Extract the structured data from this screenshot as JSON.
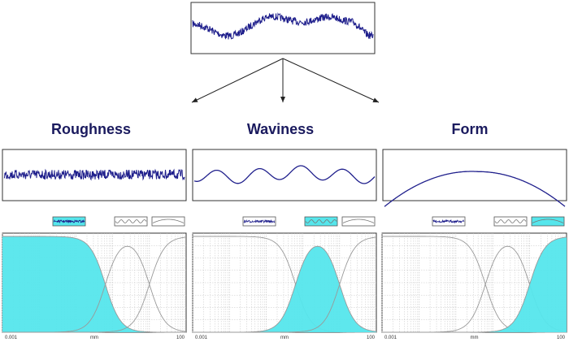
{
  "colors": {
    "signal": "#1f1f8c",
    "highlight": "#55e6ec",
    "curve": "#999999",
    "grid": "#c4c4c4",
    "frame": "#333333",
    "title": "#1a1a5e"
  },
  "columns": [
    {
      "title": "Roughness",
      "sample": "roughness",
      "highlighted_band": 0,
      "axis": {
        "min_label": "0.001",
        "unit_label": "mm",
        "max_label": "100"
      }
    },
    {
      "title": "Waviness",
      "sample": "waviness",
      "highlighted_band": 1,
      "axis": {
        "min_label": "0.001",
        "unit_label": "mm",
        "max_label": "100"
      }
    },
    {
      "title": "Form",
      "sample": "form",
      "highlighted_band": 2,
      "axis": {
        "min_label": "0.001",
        "unit_label": "mm",
        "max_label": "100"
      }
    }
  ],
  "chart_data": {
    "type": "area",
    "x_scale": "log",
    "xlim": [
      0.001,
      100
    ],
    "xlabel": "mm",
    "bands": [
      "roughness",
      "waviness",
      "form"
    ]
  }
}
